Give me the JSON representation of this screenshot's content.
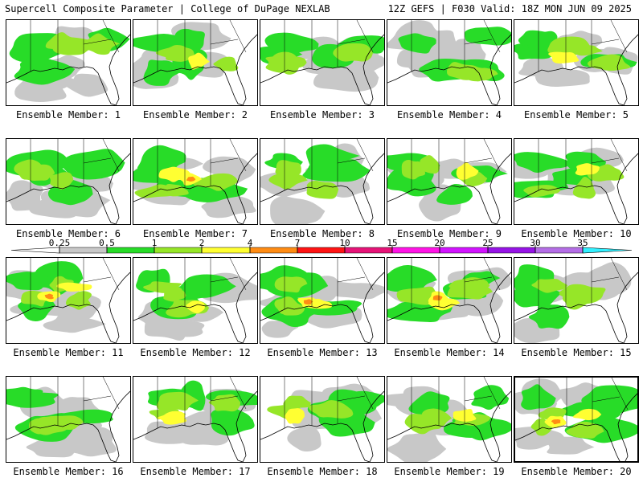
{
  "header": {
    "left": "Supercell Composite Parameter | College of DuPage NEXLAB",
    "right": "12Z GEFS | F030 Valid: 18Z MON JUN 09 2025"
  },
  "legend": {
    "labels": [
      "0.25",
      "0.5",
      "1",
      "2",
      "4",
      "7",
      "10",
      "15",
      "20",
      "25",
      "30",
      "35"
    ],
    "colors": [
      "#c8c8c8",
      "#28dc28",
      "#96e628",
      "#ffff32",
      "#ff8c14",
      "#ff1414",
      "#e61478",
      "#ff14e6",
      "#d214ff",
      "#9614e6",
      "#b46ee6",
      "#32f0ff"
    ]
  },
  "panels": [
    {
      "label": "Ensemble Member: 1"
    },
    {
      "label": "Ensemble Member: 2"
    },
    {
      "label": "Ensemble Member: 3"
    },
    {
      "label": "Ensemble Member: 4"
    },
    {
      "label": "Ensemble Member: 5"
    },
    {
      "label": "Ensemble Member: 6"
    },
    {
      "label": "Ensemble Member: 7"
    },
    {
      "label": "Ensemble Member: 8"
    },
    {
      "label": "Ensemble Member: 9"
    },
    {
      "label": "Ensemble Member: 10"
    },
    {
      "label": "Ensemble Member: 11"
    },
    {
      "label": "Ensemble Member: 12"
    },
    {
      "label": "Ensemble Member: 13"
    },
    {
      "label": "Ensemble Member: 14"
    },
    {
      "label": "Ensemble Member: 15"
    },
    {
      "label": "Ensemble Member: 16"
    },
    {
      "label": "Ensemble Member: 17"
    },
    {
      "label": "Ensemble Member: 18"
    },
    {
      "label": "Ensemble Member: 19"
    },
    {
      "label": "Ensemble Member: 20"
    }
  ]
}
